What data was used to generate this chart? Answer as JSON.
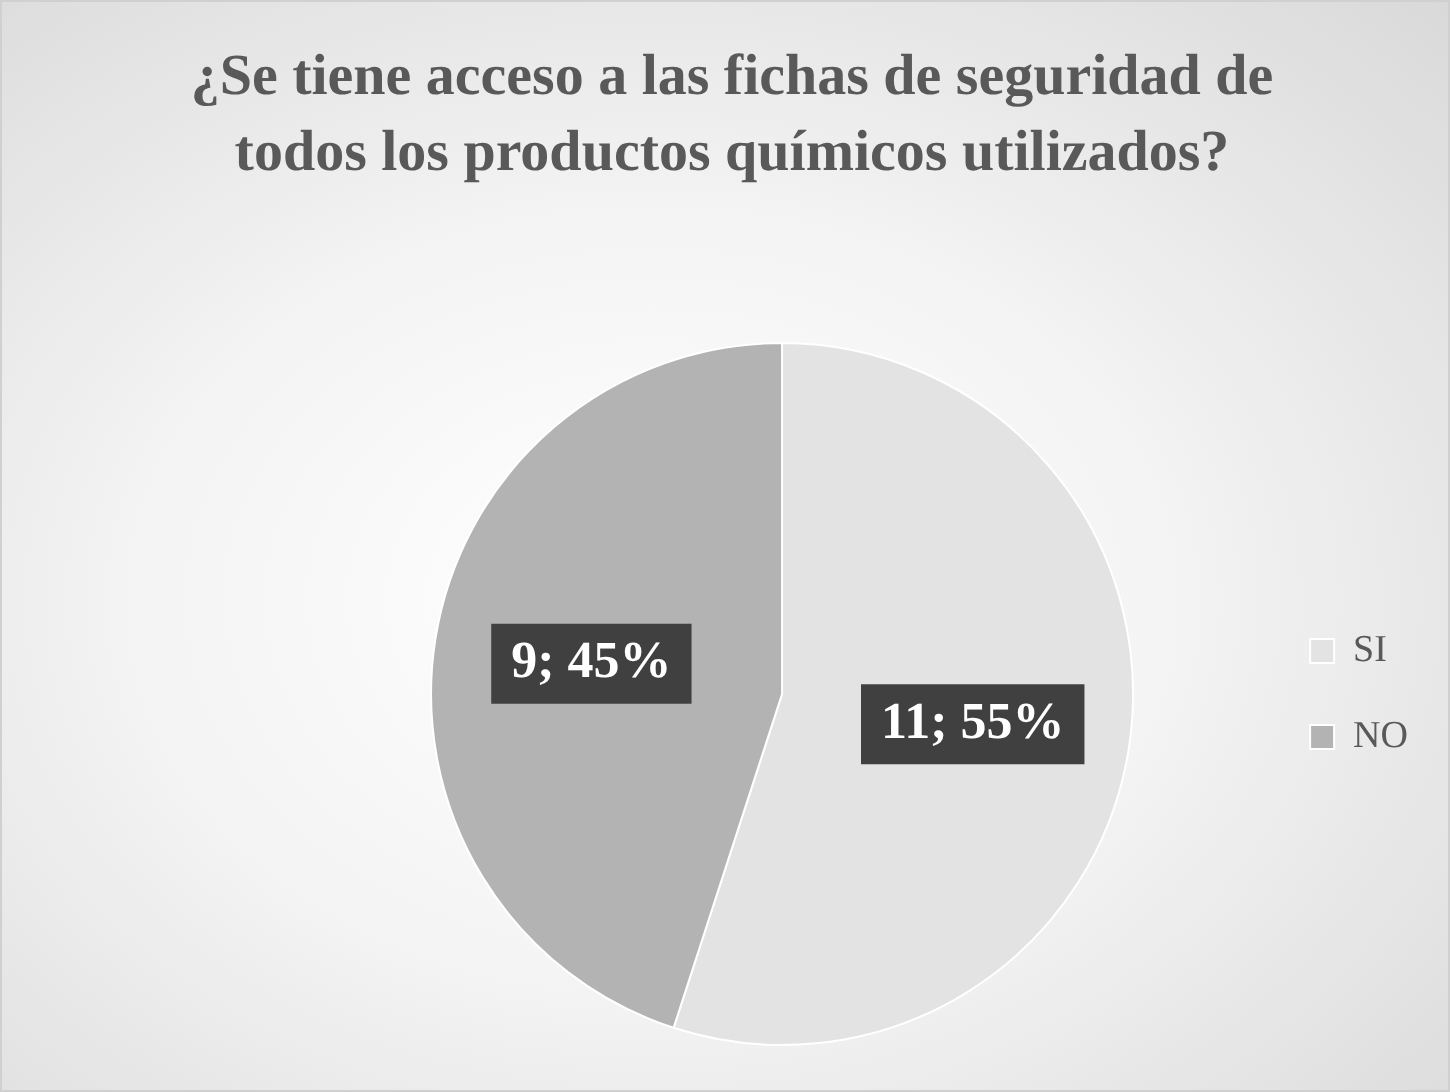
{
  "chart_data": {
    "type": "pie",
    "title": "¿Se tiene acceso a las fichas de seguridad de todos los productos químicos utilizados?",
    "categories": [
      "SI",
      "NO"
    ],
    "values": [
      11,
      9
    ],
    "colors": [
      "#e3e3e3",
      "#b3b3b3"
    ],
    "value_labels": [
      "11; 55%",
      "9; 45%"
    ],
    "legend": "right"
  }
}
